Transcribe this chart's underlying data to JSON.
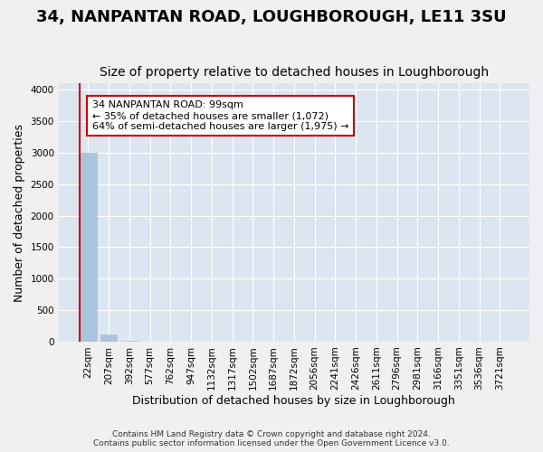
{
  "title": "34, NANPANTAN ROAD, LOUGHBOROUGH, LE11 3SU",
  "subtitle": "Size of property relative to detached houses in Loughborough",
  "xlabel": "Distribution of detached houses by size in Loughborough",
  "ylabel": "Number of detached properties",
  "footnote1": "Contains HM Land Registry data © Crown copyright and database right 2024.",
  "footnote2": "Contains public sector information licensed under the Open Government Licence v3.0.",
  "bin_labels": [
    "22sqm",
    "207sqm",
    "392sqm",
    "577sqm",
    "762sqm",
    "947sqm",
    "1132sqm",
    "1317sqm",
    "1502sqm",
    "1687sqm",
    "1872sqm",
    "2056sqm",
    "2241sqm",
    "2426sqm",
    "2611sqm",
    "2796sqm",
    "2981sqm",
    "3166sqm",
    "3351sqm",
    "3536sqm",
    "3721sqm"
  ],
  "bar_values": [
    3000,
    110,
    5,
    2,
    2,
    1,
    1,
    1,
    0,
    0,
    0,
    0,
    0,
    0,
    0,
    0,
    0,
    0,
    0,
    0,
    0
  ],
  "bar_color": "#aac4dd",
  "bar_edge_color": "#aac4dd",
  "highlight_bar_index": 0,
  "highlight_line_color": "#cc0000",
  "annotation_text": "34 NANPANTAN ROAD: 99sqm\n← 35% of detached houses are smaller (1,072)\n64% of semi-detached houses are larger (1,975) →",
  "annotation_box_color": "#ffffff",
  "annotation_box_edge_color": "#cc0000",
  "annotation_fontsize": 8,
  "ylim": [
    0,
    4100
  ],
  "yticks": [
    0,
    500,
    1000,
    1500,
    2000,
    2500,
    3000,
    3500,
    4000
  ],
  "fig_bg_color": "#f0f0f0",
  "plot_bg_color": "#dce6f0",
  "grid_color": "#ffffff",
  "title_fontsize": 13,
  "subtitle_fontsize": 10,
  "axis_label_fontsize": 9,
  "tick_fontsize": 7.5
}
